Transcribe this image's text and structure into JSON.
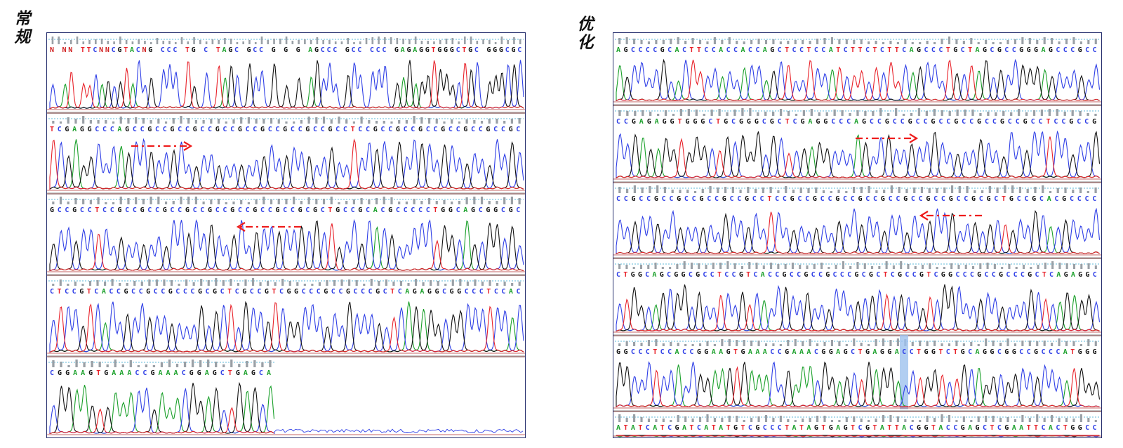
{
  "panels": [
    {
      "id": "left",
      "label": "常规",
      "rows": [
        {
          "seq": "N NN TTCNNCGTACNG CCC TG C TAGC GCC G G G AGCCC GCC CCC GAGAGGTGGGCTGC GGGCGC",
          "arrow": "none"
        },
        {
          "seq": "TCGAGGCCCAGCCGCCGCCGCCGCCGCCGCCGCCGCCGCCTCCGCCGCCGCCGCCGCCGCCGC",
          "arrow": "right"
        },
        {
          "seq": "GCCGCCTCCGCCGCCGCCGCCGCCGCCGCCGCCGCGCTGCCGCACGCCCCCTGGCAGCGGCGC",
          "arrow": "left"
        },
        {
          "seq": "CTCCGTCACCGCCGCCGCCCGCGCTCGCCGTCGGCCCGCCGCCCGCTCAGAGGCGGCCCTCCAC",
          "arrow": "none"
        },
        {
          "seq": "CGGAAGTGAAACCGAAACGGAGCTGAGCA",
          "arrow": "none"
        }
      ]
    },
    {
      "id": "right",
      "label": "优化",
      "rows": [
        {
          "seq": "AGCCCCGCACTTCCACCACCAGCTCCTCCATCTTCTCTTCAGCCCTGCTAGCGCCGGGAGCCCGCC",
          "arrow": "none"
        },
        {
          "seq": "CCGAGAGGTGGGCTGCGGGCGCTCGAGGCCCAGCCGCCGCCGCCGCCGCCGCCGCCTCCGCCG",
          "arrow": "right"
        },
        {
          "seq": "CCGCCGCCGCCGCCGCCGCCTCCGCCGCCGCCGCCGCCGCCGCCGCCGCGCTGCCGCACGCCCC",
          "arrow": "left"
        },
        {
          "seq": "CTGGCAGCGGCGCCTCCGTCACCGCCGCCGCCCGCGCTCGCCGTCGGCCCGCCGCCCGCTCAGAGGC",
          "arrow": "none"
        },
        {
          "seq": "GGCCCTCCACCGGAAGTGAAACCGAAACGGAGCTGAGGACCTGGTCTGCAGGCGGCCGCCCATGGG",
          "arrow": "none"
        },
        {
          "seq": "ATATCATCGATCATATGTCGCCCTATAGTGAGTCGTATTACGGTACCGAGCTCGAATTCACTGGCC",
          "arrow": "none"
        }
      ]
    }
  ],
  "colors": {
    "A": "#1aa02a",
    "C": "#2f3fe6",
    "G": "#111111",
    "T": "#e8222a",
    "N": "#d02020",
    "arrow": "#ee1c1c",
    "frame": "#27306e",
    "ticks": "#9aa0a6",
    "dotted_line": "#5fb8d8",
    "highlight": "#9ec2ee"
  }
}
